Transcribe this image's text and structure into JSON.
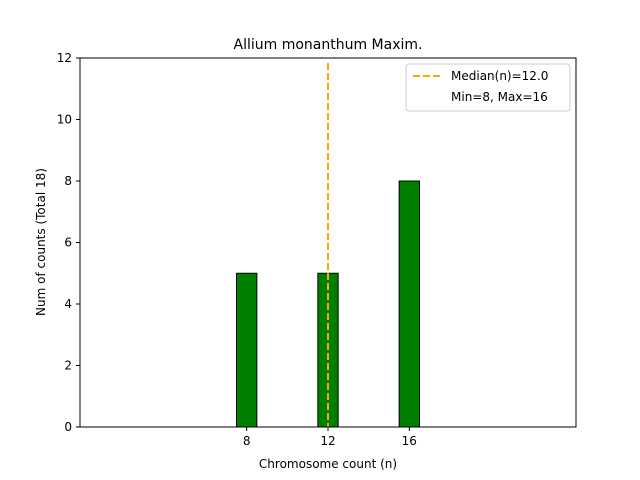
{
  "chart_data": {
    "type": "bar",
    "title": "Allium monanthum Maxim.",
    "xlabel": "Chromosome count (n)",
    "ylabel": "Num of counts      (Total 18)",
    "x": [
      8,
      12,
      16
    ],
    "values": [
      5,
      5,
      8
    ],
    "bar_width": 1,
    "xlim": [
      -0.2,
      24.2
    ],
    "ylim": [
      0,
      12
    ],
    "xticks": [
      8,
      12,
      16
    ],
    "yticks": [
      0,
      2,
      4,
      6,
      8,
      10,
      12
    ],
    "bar_color": "#008000",
    "bar_edge_color": "#000000",
    "baseline_end": 20,
    "median": {
      "value": 12,
      "color": "#ffa500",
      "label": "Median(n)=12.0"
    },
    "range_note": "Min=8, Max=16",
    "legend_position": "top-right",
    "grid": false
  }
}
